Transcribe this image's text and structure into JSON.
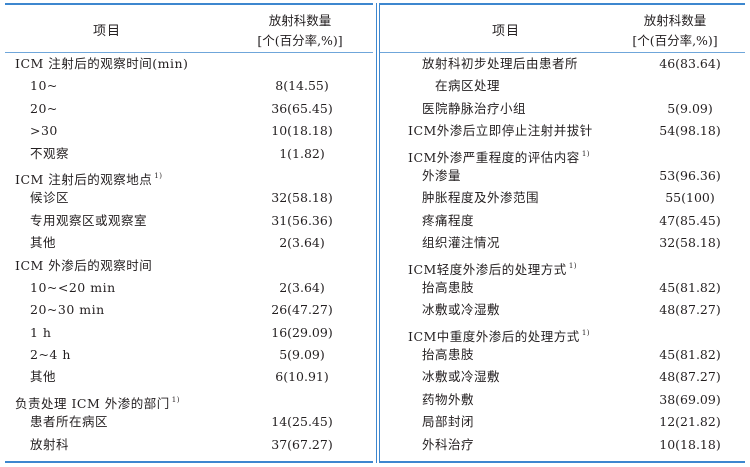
{
  "colors": {
    "rule": "#3d87cf",
    "text": "#231f20"
  },
  "header": {
    "item": "项目",
    "value_line1": "放射科数量",
    "value_line2": "[个(百分率,%)]"
  },
  "left_rows": [
    {
      "level": 0,
      "label": "ICM 注射后的观察时间(min)",
      "value": ""
    },
    {
      "level": 1,
      "label": "10~",
      "value": "8(14.55)"
    },
    {
      "level": 1,
      "label": "20~",
      "value": "36(65.45)"
    },
    {
      "level": 1,
      "label": ">30",
      "value": "10(18.18)"
    },
    {
      "level": 1,
      "label": "不观察",
      "value": "1(1.82)"
    },
    {
      "level": 0,
      "label": "ICM 注射后的观察地点",
      "note": "1)",
      "value": ""
    },
    {
      "level": 1,
      "label": "候诊区",
      "value": "32(58.18)"
    },
    {
      "level": 1,
      "label": "专用观察区或观察室",
      "value": "31(56.36)"
    },
    {
      "level": 1,
      "label": "其他",
      "value": "2(3.64)"
    },
    {
      "level": 0,
      "label": "ICM 外渗后的观察时间",
      "value": ""
    },
    {
      "level": 1,
      "label": "10~<20  min",
      "value": "2(3.64)"
    },
    {
      "level": 1,
      "label": "20~30  min",
      "value": "26(47.27)"
    },
    {
      "level": 1,
      "label": "1  h",
      "value": "16(29.09)"
    },
    {
      "level": 1,
      "label": "2~4  h",
      "value": "5(9.09)"
    },
    {
      "level": 1,
      "label": "其他",
      "value": "6(10.91)"
    },
    {
      "level": 0,
      "label": "负责处理 ICM 外渗的部门",
      "note": "1)",
      "value": ""
    },
    {
      "level": 1,
      "label": "患者所在病区",
      "value": "14(25.45)"
    },
    {
      "level": 1,
      "label": "放射科",
      "value": "37(67.27)"
    }
  ],
  "right_rows": [
    {
      "level": 1,
      "label": "放射科初步处理后由患者所",
      "value": "46(83.64)"
    },
    {
      "level": 2,
      "label": "在病区处理",
      "value": ""
    },
    {
      "level": 1,
      "label": "医院静脉治疗小组",
      "value": "5(9.09)"
    },
    {
      "level": 0,
      "label": "ICM外渗后立即停止注射并拔针",
      "value": "54(98.18)"
    },
    {
      "level": 0,
      "label": "ICM外渗严重程度的评估内容",
      "note": "1)",
      "value": ""
    },
    {
      "level": 1,
      "label": "外渗量",
      "value": "53(96.36)"
    },
    {
      "level": 1,
      "label": "肿胀程度及外渗范围",
      "value": "55(100)"
    },
    {
      "level": 1,
      "label": "疼痛程度",
      "value": "47(85.45)"
    },
    {
      "level": 1,
      "label": "组织灌注情况",
      "value": "32(58.18)"
    },
    {
      "level": 0,
      "label": "ICM轻度外渗后的处理方式",
      "note": "1)",
      "value": ""
    },
    {
      "level": 1,
      "label": "抬高患肢",
      "value": "45(81.82)"
    },
    {
      "level": 1,
      "label": "冰敷或冷湿敷",
      "value": "48(87.27)"
    },
    {
      "level": 0,
      "label": "ICM中重度外渗后的处理方式",
      "note": "1)",
      "value": ""
    },
    {
      "level": 1,
      "label": "抬高患肢",
      "value": "45(81.82)"
    },
    {
      "level": 1,
      "label": "冰敷或冷湿敷",
      "value": "48(87.27)"
    },
    {
      "level": 1,
      "label": "药物外敷",
      "value": "38(69.09)"
    },
    {
      "level": 1,
      "label": "局部封闭",
      "value": "12(21.82)"
    },
    {
      "level": 1,
      "label": "外科治疗",
      "value": "10(18.18)"
    }
  ]
}
